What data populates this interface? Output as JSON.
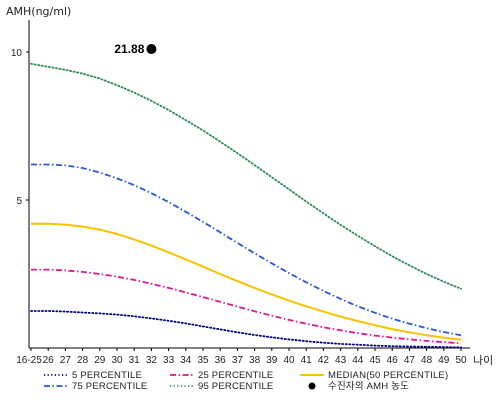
{
  "chart_data": {
    "type": "line",
    "ylabel": "AMH(ng/ml)",
    "xlabel": "나이",
    "categories": [
      "16-25",
      "26",
      "27",
      "28",
      "29",
      "30",
      "31",
      "32",
      "33",
      "34",
      "35",
      "36",
      "37",
      "38",
      "39",
      "40",
      "41",
      "42",
      "43",
      "44",
      "45",
      "46",
      "47",
      "48",
      "49",
      "50"
    ],
    "y_ticks": [
      "5",
      "10"
    ],
    "ylim": [
      0,
      11
    ],
    "grid": false,
    "legend_position": "bottom",
    "series": [
      {
        "name": "5 PERCENTILE",
        "color": "#000080",
        "style": "dotted",
        "values": [
          1.25,
          1.25,
          1.23,
          1.2,
          1.17,
          1.13,
          1.07,
          1.0,
          0.92,
          0.83,
          0.73,
          0.63,
          0.53,
          0.44,
          0.36,
          0.29,
          0.23,
          0.18,
          0.14,
          0.11,
          0.08,
          0.06,
          0.05,
          0.04,
          0.03,
          0.02
        ]
      },
      {
        "name": "25 PERCENTILE",
        "color": "#e0168c",
        "style": "dashdot",
        "values": [
          2.65,
          2.65,
          2.62,
          2.57,
          2.5,
          2.41,
          2.3,
          2.17,
          2.03,
          1.88,
          1.72,
          1.56,
          1.4,
          1.24,
          1.09,
          0.95,
          0.82,
          0.7,
          0.6,
          0.5,
          0.42,
          0.35,
          0.29,
          0.24,
          0.2,
          0.16
        ]
      },
      {
        "name": "MEDIAN(50 PERCENTILE)",
        "color": "#f5c400",
        "style": "solid",
        "values": [
          4.2,
          4.2,
          4.17,
          4.1,
          4.0,
          3.85,
          3.67,
          3.46,
          3.23,
          2.99,
          2.75,
          2.5,
          2.26,
          2.03,
          1.81,
          1.6,
          1.41,
          1.23,
          1.06,
          0.91,
          0.77,
          0.64,
          0.53,
          0.43,
          0.35,
          0.28
        ]
      },
      {
        "name": "75 PERCENTILE",
        "color": "#2b56d6",
        "style": "dashdot",
        "values": [
          6.2,
          6.2,
          6.17,
          6.08,
          5.93,
          5.73,
          5.5,
          5.23,
          4.93,
          4.6,
          4.26,
          3.91,
          3.55,
          3.2,
          2.86,
          2.53,
          2.22,
          1.93,
          1.66,
          1.41,
          1.19,
          0.99,
          0.82,
          0.67,
          0.54,
          0.43
        ]
      },
      {
        "name": "95 PERCENTILE",
        "color": "#2e8b57",
        "style": "dotted",
        "values": [
          9.6,
          9.5,
          9.4,
          9.27,
          9.1,
          8.88,
          8.63,
          8.35,
          8.04,
          7.7,
          7.35,
          6.97,
          6.58,
          6.18,
          5.77,
          5.36,
          4.95,
          4.55,
          4.16,
          3.79,
          3.44,
          3.1,
          2.79,
          2.5,
          2.24,
          2.0
        ]
      }
    ],
    "point": {
      "label": "수진자의 AMH 농도",
      "x": "32",
      "y": 10.1,
      "value_label": "21.88",
      "color": "#000000"
    }
  }
}
